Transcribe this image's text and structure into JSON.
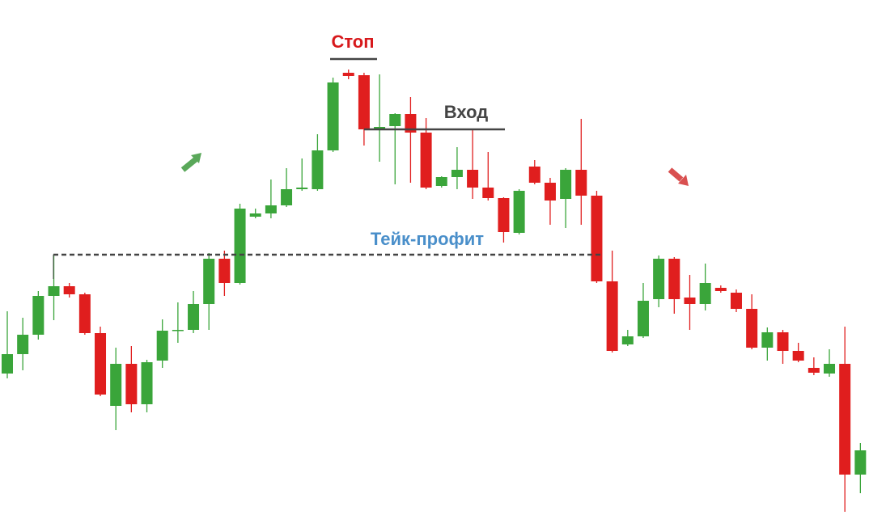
{
  "chart_data": {
    "type": "candlestick",
    "ylim": [
      0,
      658
    ],
    "up_color": "#3aa53a",
    "down_color": "#e01e1e",
    "open": [
      196,
      220,
      244,
      292,
      304,
      294,
      246,
      156,
      208,
      158,
      212,
      249,
      250,
      282,
      338,
      308,
      390,
      394,
      404,
      424,
      424,
      472,
      568,
      565,
      499,
      502,
      517,
      494,
      428,
      439,
      448,
      426,
      413,
      370,
      452,
      432,
      412,
      448,
      416,
      310,
      232,
      242,
      288,
      338,
      290,
      282,
      302,
      296,
      276,
      228,
      247,
      224,
      203,
      196,
      208,
      71
    ],
    "high": [
      273,
      265,
      298,
      344,
      308,
      296,
      254,
      228,
      230,
      213,
      263,
      284,
      298,
      345,
      348,
      406,
      400,
      436,
      450,
      462,
      492,
      562,
      572,
      568,
      566,
      518,
      538,
      512,
      440,
      476,
      498,
      470,
      414,
      424,
      460,
      438,
      450,
      511,
      422,
      348,
      250,
      308,
      342,
      340,
      318,
      332,
      305,
      300,
      294,
      253,
      250,
      234,
      216,
      226,
      254,
      110
    ],
    "low": [
      190,
      200,
      238,
      262,
      290,
      244,
      168,
      126,
      148,
      148,
      203,
      234,
      246,
      250,
      292,
      306,
      388,
      388,
      402,
      422,
      422,
      470,
      560,
      478,
      458,
      430,
      432,
      424,
      426,
      424,
      412,
      410,
      358,
      368,
      430,
      380,
      376,
      380,
      308,
      222,
      230,
      240,
      278,
      270,
      250,
      274,
      296,
      272,
      226,
      212,
      208,
      210,
      194,
      192,
      25,
      48
    ],
    "close": [
      220,
      244,
      292,
      304,
      294,
      246,
      170,
      208,
      158,
      210,
      249,
      250,
      282,
      338,
      308,
      400,
      394,
      404,
      424,
      426,
      472,
      556,
      564,
      498,
      501,
      517,
      494,
      426,
      439,
      448,
      426,
      413,
      371,
      422,
      432,
      410,
      448,
      416,
      310,
      224,
      242,
      286,
      338,
      288,
      282,
      308,
      298,
      276,
      228,
      247,
      224,
      212,
      197,
      208,
      71,
      101
    ],
    "annotations": [
      {
        "text": "Стоп",
        "value": 585,
        "color": "#d7191c"
      },
      {
        "text": "Вход",
        "value": 498,
        "color": "#444444"
      },
      {
        "text": "Тейк-профит",
        "value": 343,
        "color": "#4a8fca"
      }
    ]
  }
}
